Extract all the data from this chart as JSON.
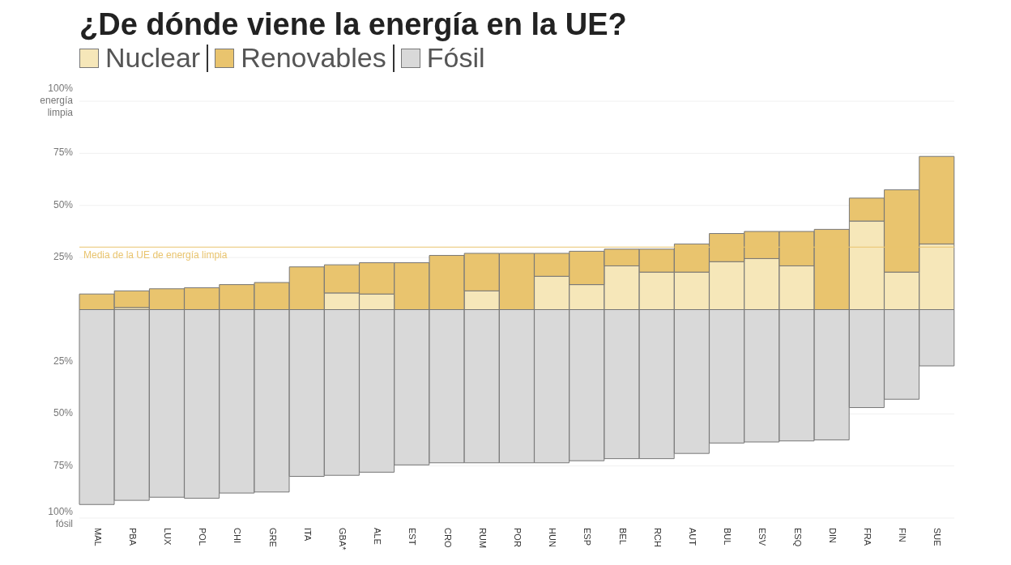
{
  "chart_data": {
    "type": "bar",
    "title": "¿De dónde viene la energía en la UE?",
    "stacked": true,
    "categories": [
      "MAL",
      "PBA",
      "LUX",
      "POL",
      "CHI",
      "GRE",
      "ITA",
      "GBA*",
      "ALE",
      "EST",
      "CRO",
      "RUM",
      "POR",
      "HUN",
      "ESP",
      "BEL",
      "RCH",
      "AUT",
      "BUL",
      "ESV",
      "ESQ",
      "DIN",
      "FRA",
      "FIN",
      "SUE"
    ],
    "series": [
      {
        "name": "Nuclear",
        "color": "#f6e7b9",
        "values": [
          0,
          1,
          0,
          0,
          0,
          0,
          0,
          8,
          7.5,
          0,
          0,
          9,
          0,
          16,
          12,
          21,
          18,
          18,
          23,
          24.5,
          21,
          0,
          42.5,
          18,
          31.5
        ]
      },
      {
        "name": "Renovables",
        "color": "#e9c46e",
        "values": [
          7.5,
          8,
          10,
          10.5,
          12,
          13,
          20.5,
          13.5,
          15,
          22.5,
          26,
          18,
          27,
          11,
          16,
          8,
          11,
          13.5,
          13.5,
          13,
          16.5,
          38.5,
          11,
          39.5,
          42
        ]
      },
      {
        "name": "Fósil",
        "color": "#d9d9d9",
        "values": [
          -93.5,
          -91.5,
          -90,
          -90.5,
          -88,
          -87.5,
          -80,
          -79.5,
          -78,
          -74.5,
          -73.5,
          -73.5,
          -73.5,
          -73.5,
          -72.5,
          -71.5,
          -71.5,
          -69,
          -64,
          -63.5,
          -63,
          -62.5,
          -47,
          -43,
          -27
        ]
      }
    ],
    "ylim": [
      -100,
      100
    ],
    "yticks": [
      {
        "value": 100,
        "label": "100% energía limpia"
      },
      {
        "value": 75,
        "label": "75%"
      },
      {
        "value": 50,
        "label": "50%"
      },
      {
        "value": 25,
        "label": "25%"
      },
      {
        "value": -25,
        "label": "25%"
      },
      {
        "value": -50,
        "label": "50%"
      },
      {
        "value": -75,
        "label": "75%"
      },
      {
        "value": -100,
        "label": "100% fósil"
      }
    ],
    "ref_lines": [
      {
        "axis": "y",
        "value": 30,
        "label": "Media de la UE de energía limpia",
        "color": "#e9c46e"
      }
    ],
    "grid": "y",
    "legend": "top left"
  }
}
